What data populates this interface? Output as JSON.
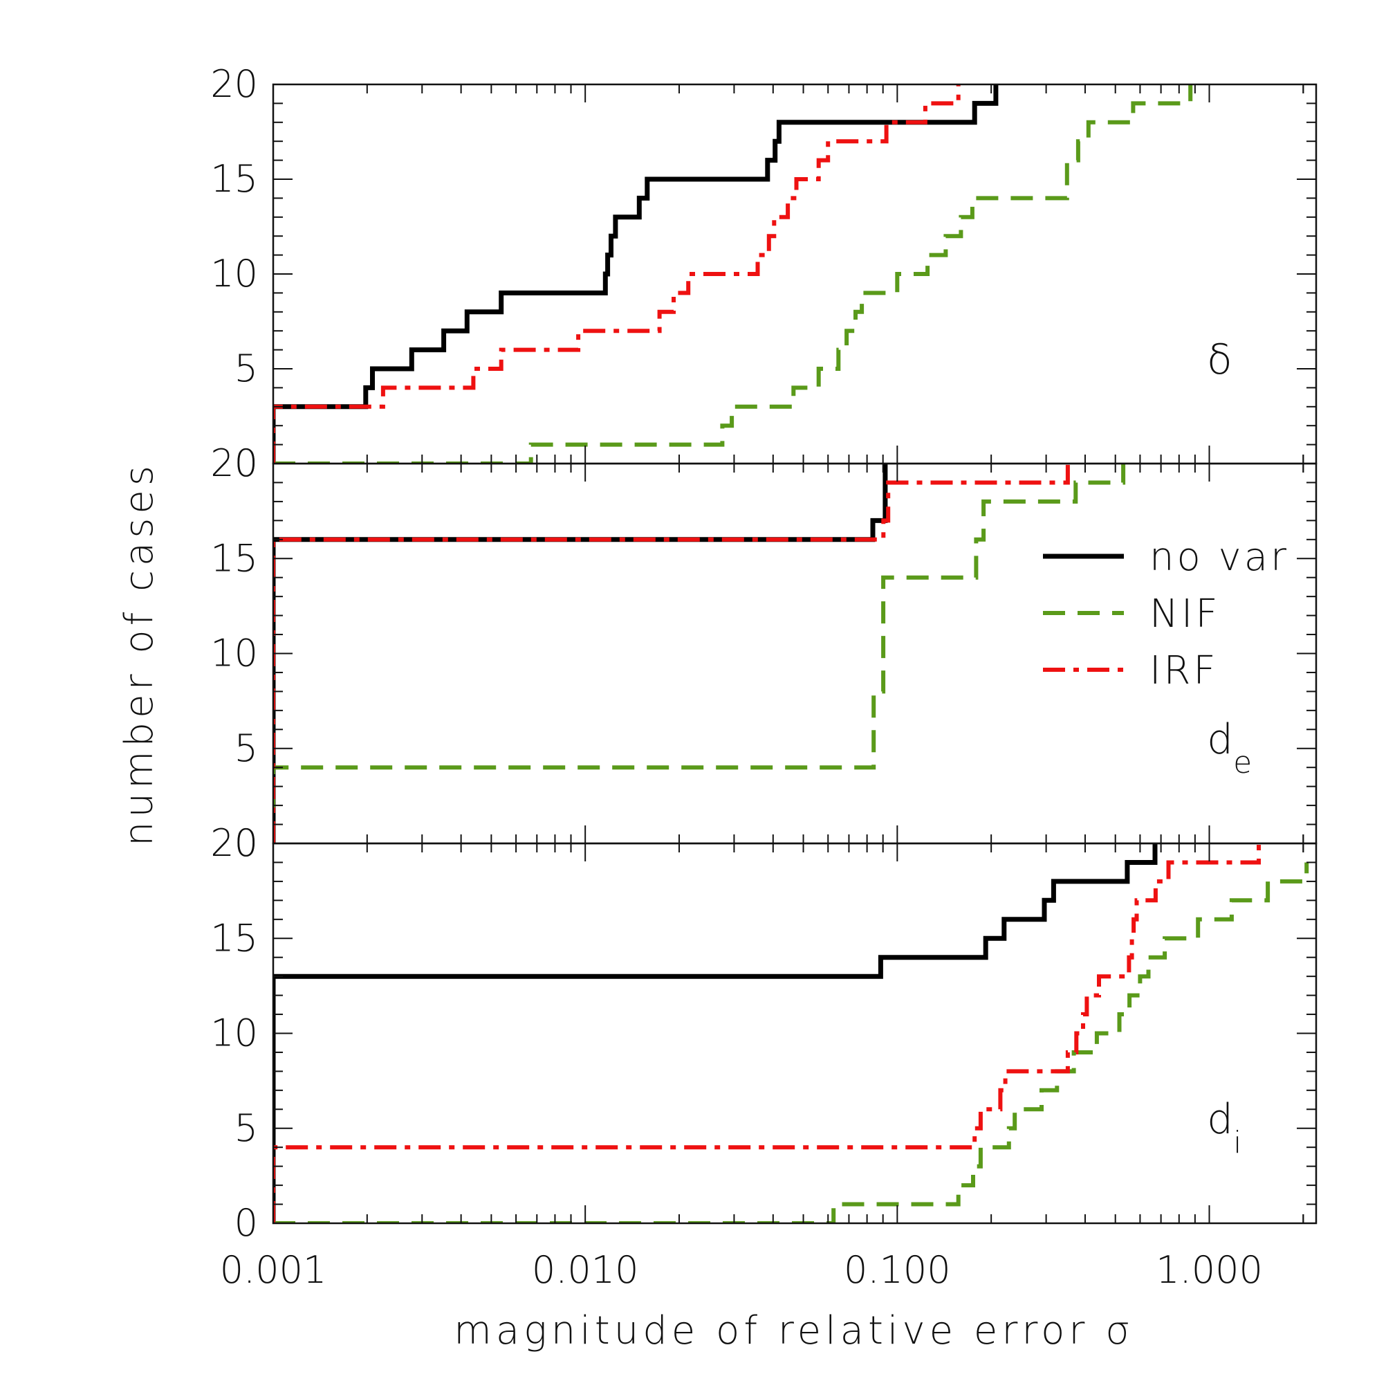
{
  "figure": {
    "x_axis_label": "magnitude of relative error σ",
    "y_axis_label": "number of cases",
    "x_ticks": [
      0.001,
      0.01,
      0.1,
      1
    ],
    "x_tick_labels": [
      "0.001",
      "0.010",
      "0.100",
      "1.000"
    ],
    "y_tick_labels": [
      "0",
      "5",
      "10",
      "15",
      "20"
    ],
    "legend": [
      {
        "label": "no var",
        "color": "#000000",
        "dash": "solid"
      },
      {
        "label": "NIF",
        "color": "#5a9a1a",
        "dash": "dashed"
      },
      {
        "label": "IRF",
        "color": "#ee1111",
        "dash": "dash-dot"
      }
    ]
  },
  "chart_data": [
    {
      "type": "line",
      "panel_label": "δ",
      "panel_sub": "",
      "xscale": "log",
      "xlim": [
        0.001,
        2.2
      ],
      "ylim": [
        0,
        20
      ],
      "series": [
        {
          "name": "no var",
          "color": "#000000",
          "dash": "solid",
          "steps": [
            [
              0.001,
              0
            ],
            [
              0.001,
              3
            ],
            [
              0.00198,
              3
            ],
            [
              0.00198,
              4
            ],
            [
              0.00208,
              4
            ],
            [
              0.00208,
              5
            ],
            [
              0.00278,
              5
            ],
            [
              0.00278,
              6
            ],
            [
              0.00352,
              6
            ],
            [
              0.00352,
              7
            ],
            [
              0.00418,
              7
            ],
            [
              0.00418,
              8
            ],
            [
              0.00538,
              8
            ],
            [
              0.00538,
              9
            ],
            [
              0.0116,
              9
            ],
            [
              0.0116,
              10
            ],
            [
              0.0118,
              10
            ],
            [
              0.0118,
              11
            ],
            [
              0.0121,
              11
            ],
            [
              0.0121,
              12
            ],
            [
              0.0125,
              12
            ],
            [
              0.0125,
              13
            ],
            [
              0.0149,
              13
            ],
            [
              0.0149,
              14
            ],
            [
              0.0158,
              14
            ],
            [
              0.0158,
              15
            ],
            [
              0.0384,
              15
            ],
            [
              0.0384,
              16
            ],
            [
              0.0406,
              16
            ],
            [
              0.0406,
              17
            ],
            [
              0.0418,
              17
            ],
            [
              0.0418,
              18
            ],
            [
              0.177,
              18
            ],
            [
              0.177,
              19
            ],
            [
              0.207,
              19
            ],
            [
              0.207,
              20
            ]
          ]
        },
        {
          "name": "NIF",
          "color": "#5a9a1a",
          "dash": "dashed",
          "steps": [
            [
              0.001,
              0
            ],
            [
              0.0067,
              0
            ],
            [
              0.0067,
              1
            ],
            [
              0.0275,
              1
            ],
            [
              0.0275,
              2
            ],
            [
              0.0295,
              2
            ],
            [
              0.0295,
              3
            ],
            [
              0.0465,
              3
            ],
            [
              0.0465,
              4
            ],
            [
              0.056,
              4
            ],
            [
              0.056,
              5
            ],
            [
              0.0648,
              5
            ],
            [
              0.0648,
              6
            ],
            [
              0.0688,
              6
            ],
            [
              0.0688,
              7
            ],
            [
              0.0735,
              7
            ],
            [
              0.0735,
              8
            ],
            [
              0.077,
              8
            ],
            [
              0.077,
              9
            ],
            [
              0.1,
              9
            ],
            [
              0.1,
              10
            ],
            [
              0.125,
              10
            ],
            [
              0.125,
              11
            ],
            [
              0.143,
              11
            ],
            [
              0.143,
              12
            ],
            [
              0.16,
              12
            ],
            [
              0.16,
              13
            ],
            [
              0.174,
              13
            ],
            [
              0.174,
              14
            ],
            [
              0.35,
              14
            ],
            [
              0.35,
              16
            ],
            [
              0.38,
              16
            ],
            [
              0.38,
              17
            ],
            [
              0.41,
              17
            ],
            [
              0.41,
              18
            ],
            [
              0.57,
              18
            ],
            [
              0.57,
              19
            ],
            [
              0.87,
              19
            ],
            [
              0.87,
              20
            ]
          ]
        },
        {
          "name": "IRF",
          "color": "#ee1111",
          "dash": "dash-dot",
          "steps": [
            [
              0.001,
              0
            ],
            [
              0.001,
              3
            ],
            [
              0.00225,
              3
            ],
            [
              0.00225,
              4
            ],
            [
              0.00438,
              4
            ],
            [
              0.00438,
              5
            ],
            [
              0.00538,
              5
            ],
            [
              0.00538,
              6
            ],
            [
              0.0095,
              6
            ],
            [
              0.0095,
              7
            ],
            [
              0.0173,
              7
            ],
            [
              0.0173,
              8
            ],
            [
              0.0192,
              8
            ],
            [
              0.0192,
              9
            ],
            [
              0.0214,
              9
            ],
            [
              0.0214,
              10
            ],
            [
              0.0357,
              10
            ],
            [
              0.0357,
              11
            ],
            [
              0.0388,
              11
            ],
            [
              0.0388,
              12
            ],
            [
              0.0403,
              12
            ],
            [
              0.0403,
              13
            ],
            [
              0.0446,
              13
            ],
            [
              0.0446,
              14
            ],
            [
              0.0475,
              14
            ],
            [
              0.0475,
              15
            ],
            [
              0.056,
              15
            ],
            [
              0.056,
              16
            ],
            [
              0.06,
              16
            ],
            [
              0.06,
              17
            ],
            [
              0.0923,
              17
            ],
            [
              0.0923,
              18
            ],
            [
              0.123,
              18
            ],
            [
              0.123,
              19
            ],
            [
              0.157,
              19
            ],
            [
              0.157,
              20
            ]
          ]
        }
      ]
    },
    {
      "type": "line",
      "panel_label": "d",
      "panel_sub": "e",
      "xscale": "log",
      "xlim": [
        0.001,
        2.2
      ],
      "ylim": [
        0,
        20
      ],
      "series": [
        {
          "name": "no var",
          "color": "#000000",
          "dash": "solid",
          "steps": [
            [
              0.001,
              0
            ],
            [
              0.001,
              16
            ],
            [
              0.0835,
              16
            ],
            [
              0.0835,
              17
            ],
            [
              0.0915,
              17
            ],
            [
              0.0915,
              20
            ]
          ]
        },
        {
          "name": "NIF",
          "color": "#5a9a1a",
          "dash": "dashed",
          "steps": [
            [
              0.001,
              0
            ],
            [
              0.001,
              4
            ],
            [
              0.084,
              4
            ],
            [
              0.084,
              8
            ],
            [
              0.0902,
              8
            ],
            [
              0.0902,
              14
            ],
            [
              0.179,
              14
            ],
            [
              0.179,
              16
            ],
            [
              0.189,
              16
            ],
            [
              0.189,
              18
            ],
            [
              0.373,
              18
            ],
            [
              0.373,
              19
            ],
            [
              0.53,
              19
            ],
            [
              0.53,
              20
            ]
          ]
        },
        {
          "name": "IRF",
          "color": "#ee1111",
          "dash": "dash-dot",
          "steps": [
            [
              0.001,
              0
            ],
            [
              0.001,
              16
            ],
            [
              0.0903,
              16
            ],
            [
              0.0903,
              17
            ],
            [
              0.0935,
              17
            ],
            [
              0.0935,
              19
            ],
            [
              0.352,
              19
            ],
            [
              0.352,
              20
            ]
          ]
        }
      ]
    },
    {
      "type": "line",
      "panel_label": "d",
      "panel_sub": "i",
      "xscale": "log",
      "xlim": [
        0.001,
        2.2
      ],
      "ylim": [
        0,
        20
      ],
      "series": [
        {
          "name": "no var",
          "color": "#000000",
          "dash": "solid",
          "steps": [
            [
              0.001,
              0
            ],
            [
              0.001,
              13
            ],
            [
              0.0885,
              13
            ],
            [
              0.0885,
              14
            ],
            [
              0.192,
              14
            ],
            [
              0.192,
              15
            ],
            [
              0.22,
              15
            ],
            [
              0.22,
              16
            ],
            [
              0.296,
              16
            ],
            [
              0.296,
              17
            ],
            [
              0.317,
              17
            ],
            [
              0.317,
              18
            ],
            [
              0.546,
              18
            ],
            [
              0.546,
              19
            ],
            [
              0.67,
              19
            ],
            [
              0.67,
              20
            ]
          ]
        },
        {
          "name": "NIF",
          "color": "#5a9a1a",
          "dash": "dashed",
          "steps": [
            [
              0.001,
              0
            ],
            [
              0.0625,
              0
            ],
            [
              0.0625,
              1
            ],
            [
              0.157,
              1
            ],
            [
              0.157,
              2
            ],
            [
              0.175,
              2
            ],
            [
              0.175,
              3
            ],
            [
              0.185,
              3
            ],
            [
              0.185,
              4
            ],
            [
              0.228,
              4
            ],
            [
              0.228,
              5
            ],
            [
              0.238,
              5
            ],
            [
              0.238,
              6
            ],
            [
              0.29,
              6
            ],
            [
              0.29,
              7
            ],
            [
              0.325,
              7
            ],
            [
              0.325,
              8
            ],
            [
              0.368,
              8
            ],
            [
              0.368,
              9
            ],
            [
              0.436,
              9
            ],
            [
              0.436,
              10
            ],
            [
              0.515,
              10
            ],
            [
              0.515,
              11
            ],
            [
              0.555,
              11
            ],
            [
              0.555,
              12
            ],
            [
              0.6,
              12
            ],
            [
              0.6,
              13
            ],
            [
              0.638,
              13
            ],
            [
              0.638,
              14
            ],
            [
              0.72,
              14
            ],
            [
              0.72,
              15
            ],
            [
              0.92,
              15
            ],
            [
              0.92,
              16
            ],
            [
              1.18,
              16
            ],
            [
              1.18,
              17
            ],
            [
              1.54,
              17
            ],
            [
              1.54,
              18
            ],
            [
              2.05,
              18
            ],
            [
              2.05,
              19
            ]
          ]
        },
        {
          "name": "IRF",
          "color": "#ee1111",
          "dash": "dash-dot",
          "steps": [
            [
              0.001,
              0
            ],
            [
              0.001,
              4
            ],
            [
              0.177,
              4
            ],
            [
              0.177,
              5
            ],
            [
              0.185,
              5
            ],
            [
              0.185,
              6
            ],
            [
              0.214,
              6
            ],
            [
              0.214,
              7
            ],
            [
              0.222,
              7
            ],
            [
              0.222,
              8
            ],
            [
              0.352,
              8
            ],
            [
              0.352,
              9
            ],
            [
              0.375,
              9
            ],
            [
              0.375,
              10
            ],
            [
              0.394,
              10
            ],
            [
              0.394,
              11
            ],
            [
              0.405,
              11
            ],
            [
              0.405,
              12
            ],
            [
              0.443,
              12
            ],
            [
              0.443,
              13
            ],
            [
              0.553,
              13
            ],
            [
              0.553,
              14
            ],
            [
              0.565,
              14
            ],
            [
              0.565,
              15
            ],
            [
              0.572,
              15
            ],
            [
              0.572,
              16
            ],
            [
              0.585,
              16
            ],
            [
              0.585,
              17
            ],
            [
              0.673,
              17
            ],
            [
              0.673,
              18
            ],
            [
              0.74,
              18
            ],
            [
              0.74,
              19
            ],
            [
              1.44,
              19
            ],
            [
              1.44,
              20
            ]
          ]
        }
      ]
    }
  ]
}
